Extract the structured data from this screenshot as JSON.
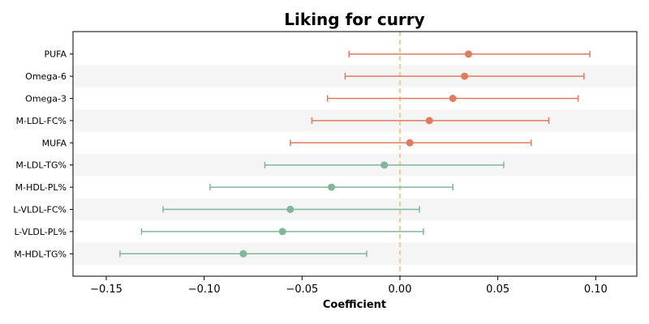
{
  "chart_data": {
    "type": "forest",
    "title": "Liking for curry",
    "xlabel": "Coefficient",
    "ylabel": "",
    "xlim": [
      -0.167,
      0.121
    ],
    "xticks": [
      -0.15,
      -0.1,
      -0.05,
      0.0,
      0.05,
      0.1
    ],
    "xtick_labels": [
      "−0.15",
      "−0.10",
      "−0.05",
      "0.00",
      "0.05",
      "0.10"
    ],
    "reference_line": 0.0,
    "colors": {
      "positive": "#e07b5f",
      "negative": "#82b69a",
      "reference": "#f5c07a",
      "band": "#f5f5f5"
    },
    "items": [
      {
        "label": "PUFA",
        "estimate": 0.035,
        "ci_low": -0.026,
        "ci_high": 0.097
      },
      {
        "label": "Omega-6",
        "estimate": 0.033,
        "ci_low": -0.028,
        "ci_high": 0.094
      },
      {
        "label": "Omega-3",
        "estimate": 0.027,
        "ci_low": -0.037,
        "ci_high": 0.091
      },
      {
        "label": "M-LDL-FC%",
        "estimate": 0.015,
        "ci_low": -0.045,
        "ci_high": 0.076
      },
      {
        "label": "MUFA",
        "estimate": 0.005,
        "ci_low": -0.056,
        "ci_high": 0.067
      },
      {
        "label": "M-LDL-TG%",
        "estimate": -0.008,
        "ci_low": -0.069,
        "ci_high": 0.053
      },
      {
        "label": "M-HDL-PL%",
        "estimate": -0.035,
        "ci_low": -0.097,
        "ci_high": 0.027
      },
      {
        "label": "L-VLDL-FC%",
        "estimate": -0.056,
        "ci_low": -0.121,
        "ci_high": 0.01
      },
      {
        "label": "L-VLDL-PL%",
        "estimate": -0.06,
        "ci_low": -0.132,
        "ci_high": 0.012
      },
      {
        "label": "M-HDL-TG%",
        "estimate": -0.08,
        "ci_low": -0.143,
        "ci_high": -0.017
      }
    ]
  }
}
